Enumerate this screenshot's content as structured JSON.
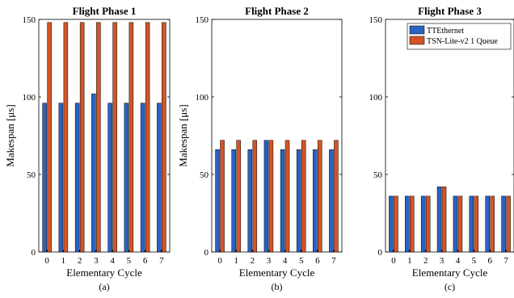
{
  "chart_data": [
    {
      "type": "bar",
      "title": "Flight Phase 1",
      "xlabel": "Elementary Cycle",
      "ylabel": "Makespan [μs]",
      "sublabel": "(a)",
      "categories": [
        "0",
        "1",
        "2",
        "3",
        "4",
        "5",
        "6",
        "7"
      ],
      "yticks": [
        "0",
        "50",
        "100",
        "150"
      ],
      "ylim": [
        0,
        150
      ],
      "grid": false,
      "series": [
        {
          "values": [
            96,
            96,
            96,
            102,
            96,
            96,
            96,
            96
          ],
          "color": "#2c62c0"
        },
        {
          "values": [
            148,
            148,
            148,
            148,
            148,
            148,
            148,
            148
          ],
          "color": "#d35427"
        }
      ]
    },
    {
      "type": "bar",
      "title": "Flight Phase 2",
      "xlabel": "Elementary Cycle",
      "ylabel": "Makespan [μs]",
      "sublabel": "(b)",
      "categories": [
        "0",
        "1",
        "2",
        "3",
        "4",
        "5",
        "6",
        "7"
      ],
      "yticks": [
        "0",
        "50",
        "100",
        "150"
      ],
      "ylim": [
        0,
        150
      ],
      "grid": false,
      "series": [
        {
          "values": [
            66,
            66,
            66,
            72,
            66,
            66,
            66,
            66
          ],
          "color": "#2c62c0"
        },
        {
          "values": [
            72,
            72,
            72,
            72,
            72,
            72,
            72,
            72
          ],
          "color": "#d35427"
        }
      ]
    },
    {
      "type": "bar",
      "title": "Flight Phase 3",
      "xlabel": "Elementary Cycle",
      "ylabel": "",
      "sublabel": "(c)",
      "categories": [
        "0",
        "1",
        "2",
        "3",
        "4",
        "5",
        "6",
        "7"
      ],
      "yticks": [
        "0",
        "50",
        "100",
        "150"
      ],
      "ylim": [
        0,
        150
      ],
      "grid": false,
      "legend": "top-right",
      "series": [
        {
          "name": "TTEthernet",
          "values": [
            36,
            36,
            36,
            42,
            36,
            36,
            36,
            36
          ],
          "color": "#2c62c0"
        },
        {
          "name": "TSN-Lite-v2 1 Queue",
          "values": [
            36,
            36,
            36,
            42,
            36,
            36,
            36,
            36
          ],
          "color": "#d35427"
        }
      ]
    }
  ]
}
